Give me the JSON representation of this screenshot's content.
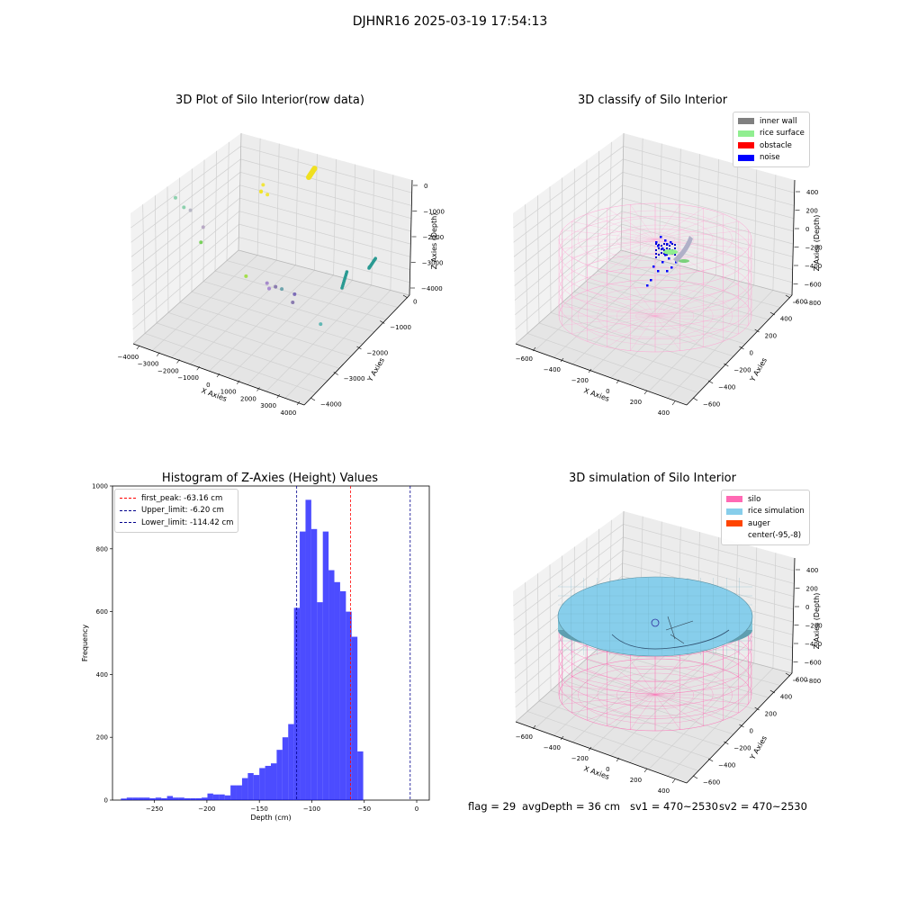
{
  "figure": {
    "suptitle": "DJHNR16 2025-03-19 17:54:13"
  },
  "colors": {
    "pink": "#ff69b4",
    "rice": "#87ceeb",
    "blue_bar": "#0000ff",
    "peak_line": "#ff0000",
    "limit_line": "#00008b"
  },
  "chart_data": [
    {
      "type": "scatter",
      "title": "3D Plot of Silo Interior(row data)",
      "xlabel": "X Axies",
      "ylabel": "Y Axies",
      "zlabel": "Z Axies (Depth)",
      "x_ticks": [
        "−4000",
        "−3000",
        "−2000",
        "−1000",
        "0",
        "1000",
        "2000",
        "3000",
        "4000"
      ],
      "y_ticks": [
        "0",
        "−1000",
        "−2000",
        "−3000",
        "−4000"
      ],
      "z_ticks": [
        "0",
        "−1000",
        "−2000",
        "−3000",
        "−4000"
      ],
      "xlim": [
        -4000,
        4000
      ],
      "ylim": [
        -4500,
        500
      ],
      "zlim": [
        -4500,
        200
      ],
      "grid": true,
      "points": [
        {
          "x": 700,
          "y": -800,
          "z": 0,
          "color": "#f2e41e"
        },
        {
          "x": 800,
          "y": -700,
          "z": 100,
          "color": "#f2e41e"
        },
        {
          "x": 900,
          "y": -900,
          "z": -100,
          "color": "#f2e41e"
        },
        {
          "x": 600,
          "y": -1000,
          "z": 50,
          "color": "#f2e41e"
        },
        {
          "x": -3500,
          "y": -1000,
          "z": -1200,
          "color": "#7ccba2"
        },
        {
          "x": -3600,
          "y": -1500,
          "z": -1800,
          "color": "#7ccba2"
        },
        {
          "x": -2800,
          "y": -1000,
          "z": -1400,
          "color": "#b0b0c0"
        },
        {
          "x": -2500,
          "y": -1300,
          "z": -2000,
          "color": "#b0a0c0"
        },
        {
          "x": -2900,
          "y": -1600,
          "z": -2700,
          "color": "#66cc44"
        },
        {
          "x": -200,
          "y": -1000,
          "z": -2700,
          "color": "#99dd33"
        },
        {
          "x": -300,
          "y": -2100,
          "z": -3600,
          "color": "#9b7bc7"
        },
        {
          "x": 0,
          "y": -2200,
          "z": -3700,
          "color": "#7a68a6"
        },
        {
          "x": -400,
          "y": -2300,
          "z": -3900,
          "color": "#a07bd0"
        },
        {
          "x": 1000,
          "y": -2000,
          "z": -3800,
          "color": "#7a68a6"
        },
        {
          "x": -300,
          "y": -2800,
          "z": -4200,
          "color": "#5a9aa4"
        },
        {
          "x": 200,
          "y": -2900,
          "z": -4300,
          "color": "#6b58b0"
        },
        {
          "x": 2700,
          "y": -1600,
          "z": -3800,
          "color": "#4cb0ad"
        },
        {
          "x": 3800,
          "y": -2800,
          "z": -2700,
          "color": "#2a9a92"
        }
      ]
    },
    {
      "type": "scatter",
      "title": "3D classify of Silo Interior",
      "xlabel": "X Axies",
      "ylabel": "Y Axies",
      "zlabel": "Z Axies (Depth)",
      "x_ticks": [
        "−600",
        "−400",
        "−200",
        "0",
        "200",
        "400"
      ],
      "y_ticks": [
        "600",
        "400",
        "200",
        "0",
        "−200",
        "−400",
        "−600"
      ],
      "z_ticks": [
        "400",
        "200",
        "0",
        "−200",
        "−400",
        "−600",
        "−800"
      ],
      "xlim": [
        -700,
        500
      ],
      "ylim": [
        -700,
        700
      ],
      "zlim": [
        -900,
        500
      ],
      "legend_position": "top-right",
      "legend": [
        {
          "label": "inner wall",
          "color": "#808080"
        },
        {
          "label": "rice surface",
          "color": "#90ee90"
        },
        {
          "label": "obstacle",
          "color": "#ff0000"
        },
        {
          "label": "noise",
          "color": "#0000ff"
        }
      ]
    },
    {
      "type": "bar",
      "title": "Histogram of Z-Axies (Height) Values",
      "xlabel": "Depth (cm)",
      "ylabel": "Frequency",
      "xlim": [
        -290,
        12
      ],
      "ylim": [
        0,
        1000
      ],
      "x_ticks": [
        -250,
        -200,
        -150,
        -100,
        -50,
        0
      ],
      "y_ticks": [
        0,
        200,
        400,
        600,
        800,
        1000
      ],
      "bin_start": -282,
      "bin_width": 5.5,
      "values": [
        5,
        8,
        8,
        8,
        8,
        6,
        8,
        6,
        13,
        8,
        8,
        6,
        6,
        6,
        8,
        21,
        18,
        18,
        15,
        47,
        47,
        70,
        86,
        80,
        102,
        109,
        117,
        160,
        200,
        242,
        612,
        855,
        956,
        863,
        630,
        855,
        732,
        694,
        665,
        600,
        520,
        155
      ],
      "lines": [
        {
          "label": "first_peak: -63.16 cm",
          "x": -63.16,
          "style": "peak"
        },
        {
          "label": "Upper_limit: -6.20 cm",
          "x": -6.2,
          "style": "limit"
        },
        {
          "label": "Lower_limit: -114.42 cm",
          "x": -114.42,
          "style": "limit"
        }
      ],
      "legend_position": "top-left"
    },
    {
      "type": "scatter",
      "title": "3D simulation of Silo Interior",
      "xlabel": "X Axies",
      "ylabel": "Y Axies",
      "zlabel": "Z Axies (Depth)",
      "x_ticks": [
        "−600",
        "−400",
        "−200",
        "0",
        "200",
        "400"
      ],
      "y_ticks": [
        "600",
        "400",
        "200",
        "0",
        "−200",
        "−400",
        "−600"
      ],
      "z_ticks": [
        "400",
        "200",
        "0",
        "−200",
        "−400",
        "−600",
        "−800"
      ],
      "legend_position": "top-right",
      "legend": [
        {
          "label": "silo",
          "color": "#ff69b4"
        },
        {
          "label": "rice simulation",
          "color": "#87ceeb"
        },
        {
          "label": "auger",
          "color": "#ff4500"
        },
        {
          "label": "center(-95,-8)",
          "color": ""
        }
      ]
    }
  ],
  "footer": {
    "flag": "flag = 29",
    "avg_depth": "avgDepth = 36 cm",
    "sv1": "sv1 = 470~2530",
    "sv2": "sv2 = 470~2530"
  }
}
